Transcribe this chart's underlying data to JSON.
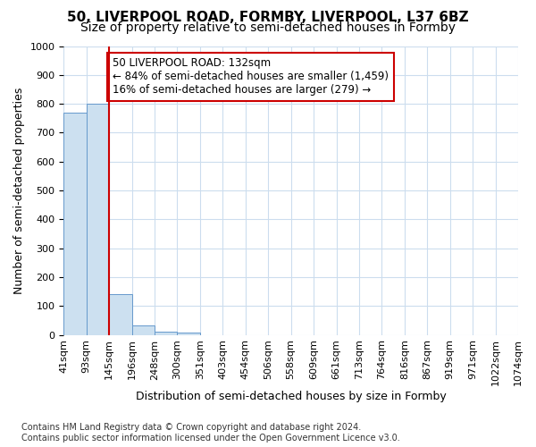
{
  "title1": "50, LIVERPOOL ROAD, FORMBY, LIVERPOOL, L37 6BZ",
  "title2": "Size of property relative to semi-detached houses in Formby",
  "xlabel": "Distribution of semi-detached houses by size in Formby",
  "ylabel": "Number of semi-detached properties",
  "footnote": "Contains HM Land Registry data © Crown copyright and database right 2024.\nContains public sector information licensed under the Open Government Licence v3.0.",
  "bin_labels": [
    "41sqm",
    "93sqm",
    "145sqm",
    "196sqm",
    "248sqm",
    "300sqm",
    "351sqm",
    "403sqm",
    "454sqm",
    "506sqm",
    "558sqm",
    "609sqm",
    "661sqm",
    "713sqm",
    "764sqm",
    "816sqm",
    "867sqm",
    "919sqm",
    "971sqm",
    "1022sqm",
    "1074sqm"
  ],
  "bar_values": [
    770,
    800,
    140,
    32,
    12,
    7,
    0,
    0,
    0,
    0,
    0,
    0,
    0,
    0,
    0,
    0,
    0,
    0,
    0,
    0
  ],
  "bar_color": "#cce0f0",
  "bar_edge_color": "#6699cc",
  "property_line_x": 2.0,
  "property_line_color": "#cc0000",
  "annotation_text": "50 LIVERPOOL ROAD: 132sqm\n← 84% of semi-detached houses are smaller (1,459)\n16% of semi-detached houses are larger (279) →",
  "annotation_box_color": "#cc0000",
  "ylim": [
    0,
    1000
  ],
  "yticks": [
    0,
    100,
    200,
    300,
    400,
    500,
    600,
    700,
    800,
    900,
    1000
  ],
  "grid_color": "#ccddee",
  "title1_fontsize": 11,
  "title2_fontsize": 10,
  "xlabel_fontsize": 9,
  "ylabel_fontsize": 9,
  "tick_fontsize": 8,
  "annotation_fontsize": 8.5,
  "footnote_fontsize": 7
}
